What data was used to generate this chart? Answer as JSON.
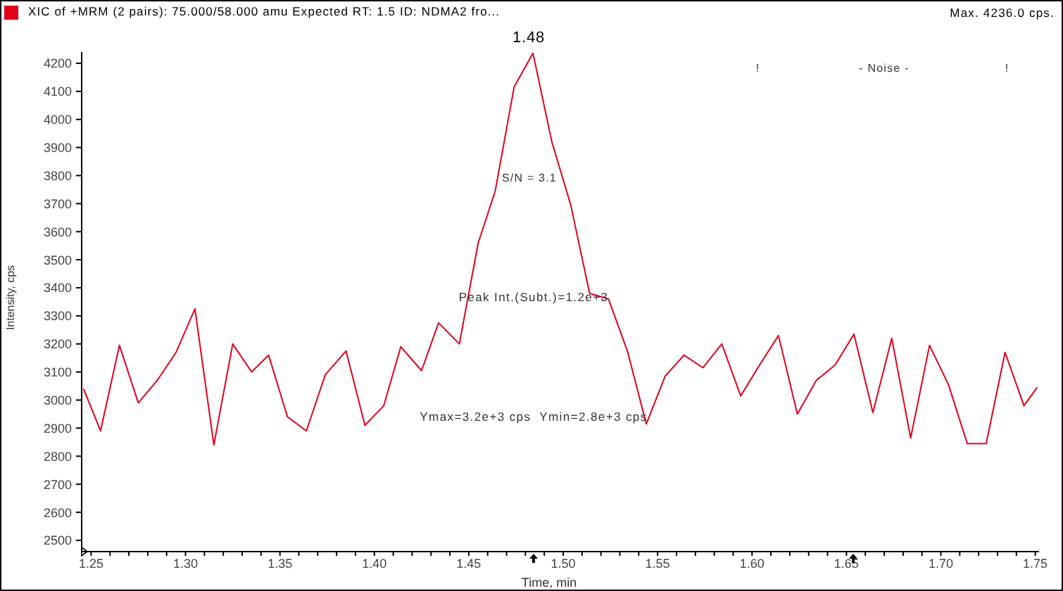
{
  "chart_data": {
    "type": "line",
    "x": [
      1.246,
      1.255,
      1.265,
      1.275,
      1.285,
      1.295,
      1.305,
      1.315,
      1.325,
      1.335,
      1.344,
      1.354,
      1.364,
      1.374,
      1.385,
      1.395,
      1.405,
      1.414,
      1.425,
      1.434,
      1.445,
      1.455,
      1.464,
      1.474,
      1.484,
      1.494,
      1.504,
      1.514,
      1.524,
      1.534,
      1.544,
      1.554,
      1.564,
      1.574,
      1.584,
      1.594,
      1.604,
      1.614,
      1.624,
      1.634,
      1.644,
      1.654,
      1.664,
      1.674,
      1.684,
      1.694,
      1.704,
      1.714,
      1.724,
      1.734,
      1.744,
      1.751
    ],
    "series": [
      {
        "name": "XIC of +MRM (2 pairs): 75.000/58.000 amu Expected RT: 1.5 ID: NDMA2 fro...",
        "color": "#e3001b",
        "values": [
          3040,
          2890,
          3195,
          2990,
          3070,
          3170,
          3325,
          2840,
          3200,
          3100,
          3160,
          2940,
          2890,
          3090,
          3175,
          2910,
          2980,
          3190,
          3105,
          3275,
          3200,
          3560,
          3745,
          4115,
          4236,
          3920,
          3695,
          3380,
          3360,
          3175,
          2915,
          3085,
          3160,
          3115,
          3200,
          3015,
          3125,
          3230,
          2950,
          3070,
          3125,
          3235,
          2955,
          3220,
          2865,
          3195,
          3055,
          2845,
          2845,
          3170,
          2980,
          3045
        ]
      }
    ],
    "xlabel": "Time, min",
    "ylabel": "Intensity, cps",
    "xlim": [
      1.245,
      1.752
    ],
    "ylim": [
      2460,
      4240
    ],
    "xticks": [
      {
        "value": 1.25,
        "label": "1.25"
      },
      {
        "value": 1.26,
        "label": null
      },
      {
        "value": 1.27,
        "label": null
      },
      {
        "value": 1.28,
        "label": null
      },
      {
        "value": 1.29,
        "label": null
      },
      {
        "value": 1.3,
        "label": "1.30"
      },
      {
        "value": 1.31,
        "label": null
      },
      {
        "value": 1.32,
        "label": null
      },
      {
        "value": 1.33,
        "label": null
      },
      {
        "value": 1.34,
        "label": null
      },
      {
        "value": 1.35,
        "label": "1.35"
      },
      {
        "value": 1.36,
        "label": null
      },
      {
        "value": 1.37,
        "label": null
      },
      {
        "value": 1.38,
        "label": null
      },
      {
        "value": 1.39,
        "label": null
      },
      {
        "value": 1.4,
        "label": "1.40"
      },
      {
        "value": 1.41,
        "label": null
      },
      {
        "value": 1.42,
        "label": null
      },
      {
        "value": 1.43,
        "label": null
      },
      {
        "value": 1.44,
        "label": null
      },
      {
        "value": 1.45,
        "label": "1.45"
      },
      {
        "value": 1.46,
        "label": null
      },
      {
        "value": 1.47,
        "label": null
      },
      {
        "value": 1.48,
        "label": null
      },
      {
        "value": 1.49,
        "label": null
      },
      {
        "value": 1.5,
        "label": "1.50"
      },
      {
        "value": 1.51,
        "label": null
      },
      {
        "value": 1.52,
        "label": null
      },
      {
        "value": 1.53,
        "label": null
      },
      {
        "value": 1.54,
        "label": null
      },
      {
        "value": 1.55,
        "label": "1.55"
      },
      {
        "value": 1.56,
        "label": null
      },
      {
        "value": 1.57,
        "label": null
      },
      {
        "value": 1.58,
        "label": null
      },
      {
        "value": 1.59,
        "label": null
      },
      {
        "value": 1.6,
        "label": "1.60"
      },
      {
        "value": 1.61,
        "label": null
      },
      {
        "value": 1.62,
        "label": null
      },
      {
        "value": 1.63,
        "label": null
      },
      {
        "value": 1.64,
        "label": null
      },
      {
        "value": 1.65,
        "label": "1.65"
      },
      {
        "value": 1.66,
        "label": null
      },
      {
        "value": 1.67,
        "label": null
      },
      {
        "value": 1.68,
        "label": null
      },
      {
        "value": 1.69,
        "label": null
      },
      {
        "value": 1.7,
        "label": "1.70"
      },
      {
        "value": 1.71,
        "label": null
      },
      {
        "value": 1.72,
        "label": null
      },
      {
        "value": 1.73,
        "label": null
      },
      {
        "value": 1.74,
        "label": null
      },
      {
        "value": 1.75,
        "label": "1.75"
      }
    ],
    "yticks": [
      2500,
      2600,
      2700,
      2800,
      2900,
      3000,
      3100,
      3200,
      3300,
      3400,
      3500,
      3600,
      3700,
      3800,
      3900,
      4000,
      4100,
      4200
    ],
    "annotations": [
      {
        "text": "1.48",
        "x": 1.484,
        "y": 4236
      },
      "S/N = 3.1",
      "Peak Int.(Subt.)=1.2e+3",
      "Ymax=3.2e+3 cps  Ymin=2.8e+3 cps",
      "!",
      "- Noise -",
      "!",
      "Max. 4236.0 cps."
    ],
    "legend": "top left"
  }
}
